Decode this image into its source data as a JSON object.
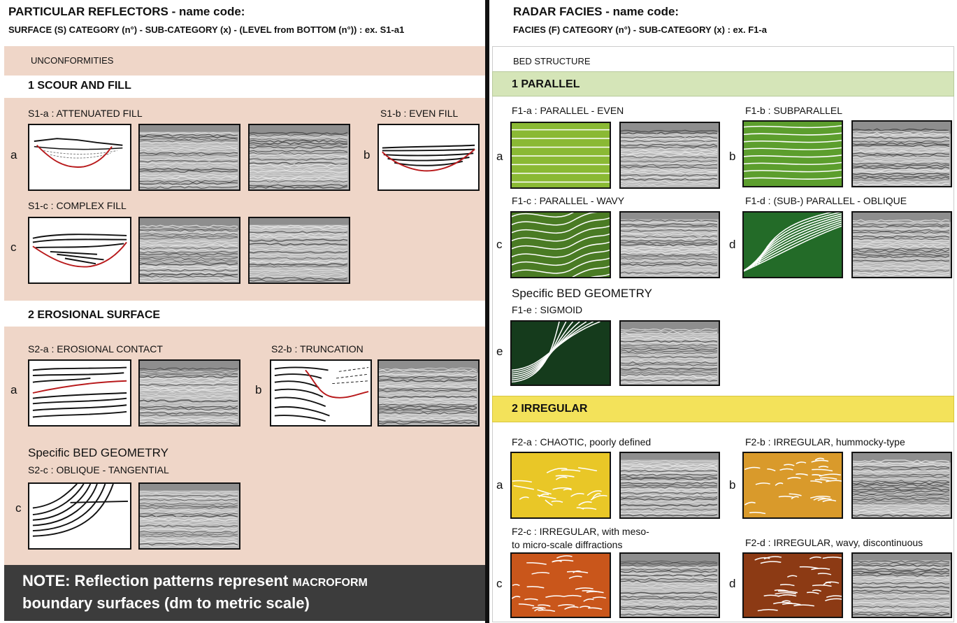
{
  "left": {
    "title": "PARTICULAR REFLECTORS - name code:",
    "subtitle": "SURFACE (S) CATEGORY (n°) - SUB-CATEGORY (x) - (LEVEL from BOTTOM  (n°)) : ex. S1-a1",
    "section_label": "UNCONFORMITIES",
    "cat1": "1 SCOUR AND FILL",
    "s1a": "S1-a : ATTENUATED FILL",
    "s1b": "S1-b : EVEN FILL",
    "s1c": "S1-c : COMPLEX FILL",
    "cat2": "2 EROSIONAL SURFACE",
    "s2a": "S2-a : EROSIONAL CONTACT",
    "s2b": "S2-b : TRUNCATION",
    "geometry": "Specific  BED GEOMETRY",
    "s2c": "S2-c : OBLIQUE - TANGENTIAL",
    "note_line1_a": "NOTE: Reflection patterns represent ",
    "note_line1_b": "MACROFORM",
    "note_line2": "boundary surfaces (dm to metric scale)"
  },
  "right": {
    "title": "RADAR FACIES - name code:",
    "subtitle": "FACIES (F) CATEGORY (n°)  - SUB-CATEGORY (x) : ex. F1-a",
    "section_label": "BED STRUCTURE",
    "cat1": "1 PARALLEL",
    "f1a": "F1-a : PARALLEL - EVEN",
    "f1b": "F1-b : SUBPARALLEL",
    "f1c": "F1-c : PARALLEL - WAVY",
    "f1d": "F1-d :  (SUB-) PARALLEL - OBLIQUE",
    "geometry": "Specific  BED GEOMETRY",
    "f1e": "F1-e : SIGMOID",
    "cat2": "2  IRREGULAR",
    "f2a": "F2-a : CHAOTIC, poorly defined",
    "f2b": "F2-b : IRREGULAR, hummocky-type",
    "f2c_line1": "F2-c : IRREGULAR, with meso-",
    "f2c_line2": "to micro-scale diffractions",
    "f2d": "F2-d : IRREGULAR, wavy, discontinuous"
  },
  "letters": {
    "a": "a",
    "b": "b",
    "c": "c",
    "d": "d",
    "e": "e"
  },
  "colors": {
    "left_bg": "#efd6c8",
    "parallel_header": "#d5e5b8",
    "irregular_header": "#f3e25a",
    "note_bg": "#3c3c3c",
    "f1a": "#8ab934",
    "f1b": "#5c9e2d",
    "f1c": "#4a7b24",
    "f1d": "#236b28",
    "f1e": "#153b1c",
    "f2a": "#e9c727",
    "f2b": "#d99a2b",
    "f2c": "#c9561b",
    "f2d": "#8c3a14",
    "red_line": "#b8191b"
  }
}
